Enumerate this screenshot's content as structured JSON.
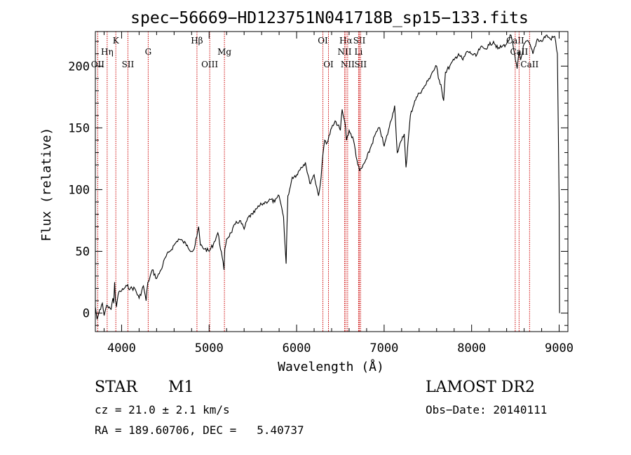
{
  "header": {
    "title": "spec−56669−HD123751N041718B_sp15−133.fits"
  },
  "info": {
    "class": "STAR",
    "subclass": "M1",
    "survey": "LAMOST DR2",
    "cz": "cz = 21.0 ± 2.1 km/s",
    "obs_date": "Obs−Date: 20140111",
    "coords": "RA = 189.60706, DEC =   5.40737"
  },
  "colors": {
    "spectrum": "#000000",
    "line_markers": "#cc0000",
    "axes": "#000000"
  },
  "chart_data": {
    "type": "line",
    "title": "spec−56669−HD123751N041718B_sp15−133.fits",
    "xlabel": "Wavelength (Å)",
    "ylabel": "Flux (relative)",
    "xlim": [
      3700,
      9100
    ],
    "ylim": [
      -15,
      228
    ],
    "xticks": [
      4000,
      5000,
      6000,
      7000,
      8000,
      9000
    ],
    "yticks": [
      0,
      50,
      100,
      150,
      200
    ],
    "grid": false,
    "spectral_lines": [
      {
        "label": "OII",
        "wavelength": 3727,
        "row": 3
      },
      {
        "label": "Hη",
        "wavelength": 3835,
        "row": 2
      },
      {
        "label": "K",
        "wavelength": 3934,
        "row": 1
      },
      {
        "label": "SII",
        "wavelength": 4072,
        "row": 3
      },
      {
        "label": "G",
        "wavelength": 4304,
        "row": 2
      },
      {
        "label": "Hβ",
        "wavelength": 4861,
        "row": 1
      },
      {
        "label": "OIII",
        "wavelength": 5007,
        "row": 3
      },
      {
        "label": "Mg",
        "wavelength": 5175,
        "row": 2
      },
      {
        "label": "OI",
        "wavelength": 6300,
        "row": 1
      },
      {
        "label": "OI",
        "wavelength": 6364,
        "row": 3
      },
      {
        "label": "Hα",
        "wavelength": 6563,
        "row": 1
      },
      {
        "label": "NII",
        "wavelength": 6548,
        "row": 2
      },
      {
        "label": "NII",
        "wavelength": 6583,
        "row": 3
      },
      {
        "label": "Li",
        "wavelength": 6708,
        "row": 2
      },
      {
        "label": "SII",
        "wavelength": 6717,
        "row": 1
      },
      {
        "label": "SII",
        "wavelength": 6731,
        "row": 3
      },
      {
        "label": "CaII",
        "wavelength": 8498,
        "row": 1
      },
      {
        "label": "CaII",
        "wavelength": 8542,
        "row": 2
      },
      {
        "label": "CaII",
        "wavelength": 8662,
        "row": 3
      }
    ],
    "series": [
      {
        "x": [
          3700,
          3720,
          3740,
          3760,
          3780,
          3800,
          3820,
          3840,
          3860,
          3880,
          3900,
          3910,
          3920,
          3930,
          3940,
          3960,
          3980,
          4000,
          4030,
          4060,
          4100,
          4150,
          4200,
          4250,
          4280,
          4300,
          4320,
          4350,
          4400,
          4450,
          4500,
          4550,
          4600,
          4650,
          4700,
          4750,
          4800,
          4830,
          4860,
          4880,
          4900,
          4950,
          5000,
          5050,
          5100,
          5150,
          5170,
          5180,
          5200,
          5250,
          5300,
          5350,
          5400,
          5450,
          5500,
          5550,
          5600,
          5650,
          5700,
          5750,
          5800,
          5850,
          5880,
          5890,
          5900,
          5920,
          5950,
          6000,
          6050,
          6100,
          6150,
          6200,
          6250,
          6280,
          6300,
          6320,
          6350,
          6400,
          6450,
          6500,
          6520,
          6540,
          6560,
          6570,
          6600,
          6650,
          6700,
          6720,
          6750,
          6800,
          6850,
          6900,
          6950,
          7000,
          7050,
          7100,
          7120,
          7150,
          7200,
          7230,
          7250,
          7300,
          7350,
          7400,
          7450,
          7500,
          7550,
          7600,
          7620,
          7650,
          7680,
          7700,
          7750,
          7800,
          7850,
          7900,
          7950,
          8000,
          8050,
          8100,
          8150,
          8200,
          8250,
          8300,
          8350,
          8400,
          8450,
          8500,
          8520,
          8540,
          8560,
          8600,
          8650,
          8700,
          8750,
          8800,
          8850,
          8900,
          8950,
          8980,
          9000,
          9005
        ],
        "y": [
          5,
          -5,
          0,
          3,
          8,
          -2,
          4,
          6,
          5,
          3,
          12,
          8,
          25,
          10,
          5,
          15,
          18,
          18,
          20,
          22,
          20,
          20,
          12,
          22,
          10,
          25,
          28,
          35,
          28,
          35,
          45,
          50,
          55,
          60,
          58,
          55,
          50,
          52,
          62,
          70,
          55,
          52,
          50,
          56,
          65,
          45,
          35,
          52,
          60,
          65,
          72,
          75,
          68,
          78,
          80,
          85,
          88,
          90,
          92,
          90,
          95,
          78,
          40,
          70,
          95,
          100,
          110,
          112,
          118,
          122,
          105,
          112,
          95,
          110,
          128,
          140,
          138,
          150,
          155,
          148,
          165,
          158,
          150,
          140,
          148,
          140,
          120,
          115,
          118,
          125,
          135,
          145,
          150,
          135,
          148,
          162,
          168,
          130,
          140,
          145,
          118,
          160,
          172,
          178,
          182,
          188,
          195,
          200,
          190,
          185,
          172,
          195,
          200,
          205,
          210,
          205,
          212,
          210,
          208,
          215,
          214,
          217,
          220,
          214,
          216,
          218,
          225,
          205,
          198,
          212,
          205,
          218,
          220,
          210,
          222,
          220,
          225,
          222,
          224,
          210,
          90,
          0
        ]
      }
    ]
  }
}
